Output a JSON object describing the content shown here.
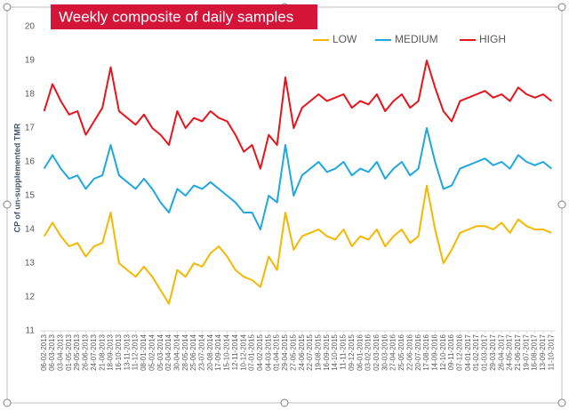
{
  "chart_data": {
    "type": "line",
    "title": "Weekly composite of daily samples",
    "y_label": "CP of un-supplemented TMR",
    "categories": [
      "06-02-2013",
      "06-03-2013",
      "03-04-2013",
      "01-05-2013",
      "29-05-2013",
      "26-06-2013",
      "24-07-2013",
      "21-08-2013",
      "18-09-2013",
      "16-10-2013",
      "13-11-2013",
      "11-12-2013",
      "08-01-2014",
      "05-02-2014",
      "05-03-2014",
      "02-04-2014",
      "30-04-2014",
      "28-05-2014",
      "25-06-2014",
      "23-07-2014",
      "20-08-2014",
      "17-09-2014",
      "15-10-2014",
      "12-11-2014",
      "10-12-2014",
      "07-01-2015",
      "04-02-2015",
      "04-03-2015",
      "01-04-2015",
      "29-04-2015",
      "27-05-2015",
      "24-06-2015",
      "22-07-2015",
      "19-08-2015",
      "16-09-2015",
      "14-10-2015",
      "11-11-2015",
      "09-12-2015",
      "06-01-2016",
      "03-02-2016",
      "02-03-2016",
      "30-03-2016",
      "27-04-2016",
      "25-05-2016",
      "22-06-2016",
      "20-07-2016",
      "17-08-2016",
      "14-09-2016",
      "12-10-2016",
      "09-11-2016",
      "07-12-2016",
      "04-01-2017",
      "01-02-2017",
      "01-03-2017",
      "29-03-2017",
      "26-04-2017",
      "24-05-2017",
      "21-06-2017",
      "19-07-2017",
      "16-08-2017",
      "13-09-2017",
      "11-10-2017"
    ],
    "series": [
      {
        "name": "LOW",
        "color": "#f5b800",
        "values": [
          13.8,
          14.2,
          13.8,
          13.5,
          13.6,
          13.2,
          13.5,
          13.6,
          14.5,
          13.0,
          12.8,
          12.6,
          12.9,
          12.6,
          12.2,
          11.8,
          12.8,
          12.6,
          13.0,
          12.9,
          13.3,
          13.5,
          13.2,
          12.8,
          12.6,
          12.5,
          12.3,
          13.2,
          12.8,
          14.5,
          13.4,
          13.8,
          13.9,
          14.0,
          13.8,
          13.7,
          14.0,
          13.5,
          13.8,
          13.7,
          14.0,
          13.5,
          13.8,
          14.0,
          13.6,
          13.8,
          15.3,
          14.0,
          13.0,
          13.4,
          13.9,
          14.0,
          14.1,
          14.1,
          14.0,
          14.2,
          13.9,
          14.3,
          14.1,
          14.0,
          14.0,
          13.9
        ]
      },
      {
        "name": "MEDIUM",
        "color": "#1ea7e1",
        "values": [
          15.8,
          16.2,
          15.8,
          15.5,
          15.6,
          15.2,
          15.5,
          15.6,
          16.5,
          15.6,
          15.4,
          15.2,
          15.5,
          15.2,
          14.8,
          14.5,
          15.2,
          15.0,
          15.3,
          15.2,
          15.4,
          15.2,
          15.0,
          14.8,
          14.5,
          14.5,
          14.0,
          15.0,
          14.8,
          16.5,
          15.0,
          15.6,
          15.8,
          16.0,
          15.7,
          15.8,
          16.0,
          15.6,
          15.8,
          15.7,
          16.0,
          15.5,
          15.8,
          16.0,
          15.6,
          15.8,
          17.0,
          16.0,
          15.2,
          15.3,
          15.8,
          15.9,
          16.0,
          16.1,
          15.9,
          16.0,
          15.8,
          16.2,
          16.0,
          15.9,
          16.0,
          15.8
        ]
      },
      {
        "name": "HIGH",
        "color": "#e8141c",
        "values": [
          17.5,
          18.3,
          17.8,
          17.4,
          17.5,
          16.8,
          17.2,
          17.6,
          18.8,
          17.5,
          17.3,
          17.1,
          17.4,
          17.0,
          16.8,
          16.5,
          17.5,
          17.0,
          17.3,
          17.2,
          17.5,
          17.3,
          17.2,
          16.8,
          16.3,
          16.5,
          15.8,
          16.8,
          16.5,
          18.5,
          17.0,
          17.6,
          17.8,
          18.0,
          17.8,
          17.9,
          18.0,
          17.6,
          17.8,
          17.7,
          18.0,
          17.5,
          17.8,
          18.0,
          17.6,
          17.8,
          19.0,
          18.2,
          17.5,
          17.2,
          17.8,
          17.9,
          18.0,
          18.1,
          17.9,
          18.0,
          17.8,
          18.2,
          18.0,
          17.9,
          18.0,
          17.8
        ]
      }
    ],
    "ylim": [
      11,
      20
    ],
    "yticks": [
      11,
      12,
      13,
      14,
      15,
      16,
      17,
      18,
      19,
      20
    ],
    "legend": "top-right",
    "grid": false
  }
}
